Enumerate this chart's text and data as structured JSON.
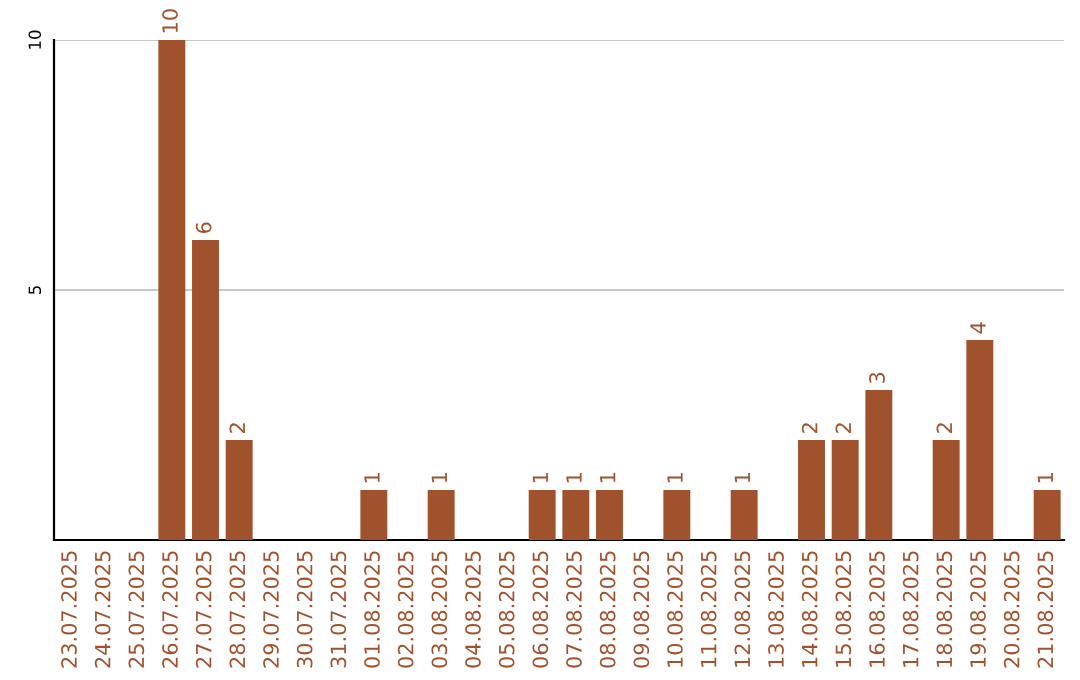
{
  "chart_data": {
    "type": "bar",
    "categories": [
      "23.07.2025",
      "24.07.2025",
      "25.07.2025",
      "26.07.2025",
      "27.07.2025",
      "28.07.2025",
      "29.07.2025",
      "30.07.2025",
      "31.07.2025",
      "01.08.2025",
      "02.08.2025",
      "03.08.2025",
      "04.08.2025",
      "05.08.2025",
      "06.08.2025",
      "07.08.2025",
      "08.08.2025",
      "09.08.2025",
      "10.08.2025",
      "11.08.2025",
      "12.08.2025",
      "13.08.2025",
      "14.08.2025",
      "15.08.2025",
      "16.08.2025",
      "17.08.2025",
      "18.08.2025",
      "19.08.2025",
      "20.08.2025",
      "21.08.2025"
    ],
    "values": [
      0,
      0,
      0,
      10,
      6,
      2,
      0,
      0,
      0,
      1,
      0,
      1,
      0,
      0,
      1,
      1,
      1,
      0,
      1,
      0,
      1,
      0,
      2,
      2,
      3,
      0,
      2,
      4,
      0,
      1
    ],
    "value_labels": [
      null,
      null,
      null,
      "10",
      "6",
      "2",
      null,
      null,
      null,
      "1",
      null,
      "1",
      null,
      null,
      "1",
      "1",
      "1",
      null,
      "1",
      null,
      "1",
      null,
      "2",
      "2",
      "3",
      null,
      "2",
      "4",
      null,
      "1"
    ],
    "color": "#a0522d",
    "ylim": [
      0,
      10
    ],
    "yticks": [
      5,
      10
    ],
    "grid": "y"
  }
}
